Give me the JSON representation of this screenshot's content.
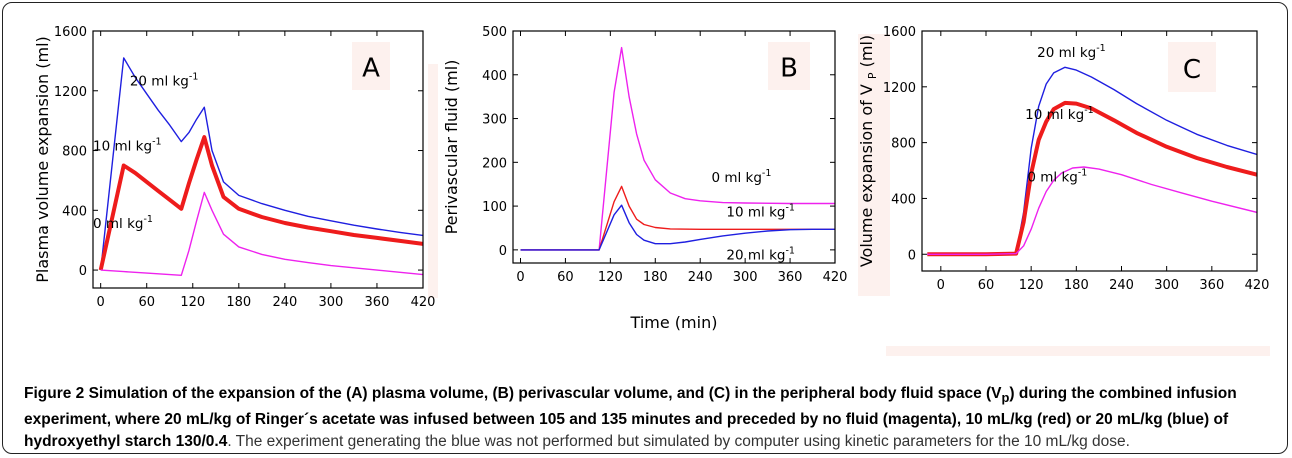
{
  "chart_data": [
    {
      "type": "line",
      "panel_label": "A",
      "ylabel": "Plasma volume expansion (ml)",
      "xlabel": "",
      "xlim": [
        -10,
        420
      ],
      "ylim": [
        -120,
        1600
      ],
      "xticks": [
        "0",
        "60",
        "120",
        "180",
        "240",
        "300",
        "360",
        "420"
      ],
      "yticks": [
        "0",
        "400",
        "800",
        "1200",
        "1600"
      ],
      "series": [
        {
          "name": "20 ml kg-1",
          "color": "#1f1fe0",
          "width": 1.4,
          "label_pos": [
            38,
            1235
          ],
          "x": [
            0,
            30,
            45,
            60,
            75,
            90,
            105,
            115,
            125,
            135,
            145,
            160,
            180,
            210,
            240,
            270,
            300,
            330,
            360,
            390,
            420
          ],
          "y": [
            0,
            1420,
            1290,
            1180,
            1070,
            970,
            860,
            920,
            1010,
            1090,
            800,
            590,
            500,
            445,
            400,
            360,
            330,
            300,
            275,
            252,
            232
          ]
        },
        {
          "name": "10 ml kg-1",
          "color": "#ee1c1c",
          "width": 4,
          "label_pos": [
            -10,
            800
          ],
          "x": [
            0,
            30,
            45,
            60,
            75,
            90,
            105,
            115,
            125,
            135,
            145,
            160,
            180,
            210,
            240,
            270,
            300,
            330,
            360,
            390,
            420
          ],
          "y": [
            0,
            700,
            650,
            590,
            530,
            470,
            410,
            580,
            740,
            890,
            700,
            490,
            410,
            355,
            315,
            285,
            260,
            235,
            215,
            195,
            175
          ]
        },
        {
          "name": "0 ml kg-1",
          "color": "#ee22ee",
          "width": 1.4,
          "label_pos": [
            -10,
            280
          ],
          "x": [
            0,
            30,
            60,
            90,
            105,
            115,
            125,
            135,
            145,
            160,
            180,
            210,
            240,
            270,
            300,
            330,
            360,
            390,
            420
          ],
          "y": [
            0,
            -10,
            -20,
            -30,
            -35,
            130,
            330,
            520,
            400,
            240,
            155,
            105,
            72,
            50,
            30,
            15,
            0,
            -15,
            -30
          ]
        }
      ]
    },
    {
      "type": "line",
      "panel_label": "B",
      "ylabel": "Perivascular fluid (ml)",
      "xlabel": "Time (min)",
      "xlim": [
        -10,
        420
      ],
      "ylim": [
        -30,
        500
      ],
      "xticks": [
        "0",
        "60",
        "120",
        "180",
        "240",
        "300",
        "360",
        "420"
      ],
      "yticks": [
        "0",
        "100",
        "200",
        "300",
        "400",
        "500"
      ],
      "series": [
        {
          "name": "0 ml kg-1",
          "color": "#ee22ee",
          "width": 1.4,
          "label_pos": [
            255,
            155
          ],
          "x": [
            0,
            60,
            105,
            115,
            125,
            135,
            145,
            155,
            165,
            180,
            200,
            220,
            240,
            270,
            300,
            360,
            420
          ],
          "y": [
            0,
            0,
            0,
            180,
            360,
            462,
            350,
            265,
            205,
            160,
            130,
            117,
            112,
            108,
            107,
            106,
            106
          ]
        },
        {
          "name": "10 ml kg-1",
          "color": "#ee1c1c",
          "width": 1.4,
          "label_pos": [
            275,
            76
          ],
          "x": [
            0,
            60,
            105,
            115,
            125,
            135,
            145,
            155,
            165,
            180,
            200,
            240,
            300,
            360,
            420
          ],
          "y": [
            0,
            0,
            0,
            55,
            110,
            145,
            100,
            70,
            58,
            51,
            48,
            47,
            47,
            47,
            47
          ]
        },
        {
          "name": "20 ml kg-1",
          "color": "#1f1fe0",
          "width": 1.4,
          "label_pos": [
            275,
            -22
          ],
          "x": [
            0,
            60,
            105,
            115,
            125,
            135,
            145,
            155,
            165,
            180,
            200,
            220,
            240,
            270,
            300,
            330,
            360,
            390,
            420
          ],
          "y": [
            0,
            0,
            0,
            40,
            80,
            102,
            62,
            35,
            22,
            14,
            14,
            18,
            24,
            32,
            38,
            43,
            46,
            47,
            47
          ]
        }
      ]
    },
    {
      "type": "line",
      "panel_label": "C",
      "ylabel": "Volume expansion of V",
      "ylabel_sub": "P",
      "ylabel_tail": " (ml)",
      "xlabel": "",
      "xlim": [
        -25,
        420
      ],
      "ylim": [
        -120,
        1600
      ],
      "xticks": [
        "0",
        "60",
        "120",
        "180",
        "240",
        "300",
        "360",
        "420"
      ],
      "yticks": [
        "0",
        "400",
        "800",
        "1200",
        "1600"
      ],
      "series": [
        {
          "name": "20 ml kg-1",
          "color": "#1f1fe0",
          "width": 1.4,
          "label_pos": [
            128,
            1415
          ],
          "x": [
            -18,
            60,
            100,
            110,
            120,
            130,
            140,
            150,
            165,
            180,
            200,
            230,
            260,
            300,
            340,
            380,
            420
          ],
          "y": [
            0,
            0,
            5,
            300,
            760,
            1060,
            1220,
            1300,
            1340,
            1320,
            1270,
            1180,
            1080,
            960,
            860,
            780,
            715
          ]
        },
        {
          "name": "10 ml kg-1",
          "color": "#ee1c1c",
          "width": 4,
          "label_pos": [
            112,
            970
          ],
          "x": [
            -18,
            60,
            100,
            110,
            120,
            130,
            140,
            150,
            165,
            180,
            200,
            230,
            260,
            300,
            340,
            380,
            420
          ],
          "y": [
            0,
            0,
            5,
            230,
            580,
            820,
            950,
            1040,
            1085,
            1080,
            1045,
            960,
            870,
            770,
            690,
            625,
            570
          ]
        },
        {
          "name": "0 ml kg-1",
          "color": "#ee22ee",
          "width": 1.4,
          "label_pos": [
            115,
            520
          ],
          "x": [
            -18,
            60,
            100,
            110,
            120,
            130,
            140,
            150,
            160,
            175,
            190,
            210,
            240,
            280,
            320,
            360,
            420
          ],
          "y": [
            0,
            0,
            5,
            60,
            180,
            330,
            450,
            530,
            580,
            618,
            625,
            610,
            570,
            500,
            440,
            380,
            300
          ]
        }
      ]
    }
  ],
  "caption": {
    "bold": "Figure 2 Simulation of the expansion of the (A) plasma volume, (B) perivascular volume, and (C) in the peripheral body fluid space (V",
    "bold_sub": "p",
    "bold_tail": ") during the combined infusion experiment, where 20 mL/kg of Ringer´s acetate was infused between 105 and 135 minutes and preceded by no fluid (magenta), 10 mL/kg (red) or 20 mL/kg (blue) of hydroxyethyl starch 130/0.4",
    "normal": ". The experiment generating the blue was not performed but simulated by computer using kinetic parameters for the 10 mL/kg dose."
  }
}
